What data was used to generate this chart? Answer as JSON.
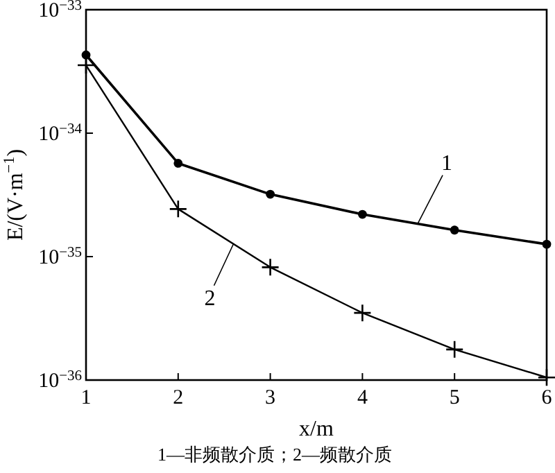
{
  "chart_data": {
    "type": "line",
    "xlabel": "x/m",
    "ylabel": "E/(V·m$^{−1}$)",
    "log": "y",
    "x": [
      1,
      2,
      3,
      4,
      5,
      6
    ],
    "xlim": [
      1,
      6
    ],
    "xticks": [
      1,
      2,
      3,
      4,
      5,
      6
    ],
    "ylim": [
      1e-36,
      1e-33
    ],
    "yticks": [
      {
        "value": 1e-36,
        "label": "10$^{−36}$"
      },
      {
        "value": 1e-35,
        "label": "10$^{−35}$"
      },
      {
        "value": 1e-34,
        "label": "10$^{−34}$"
      },
      {
        "value": 1e-33,
        "label": "10$^{−33}$"
      }
    ],
    "grid": false,
    "line_style": "solid",
    "series": [
      {
        "name": "1",
        "color": "#000000",
        "marker": "circle",
        "values": [
          4.3e-34,
          5.7e-35,
          3.2e-35,
          2.2e-35,
          1.64e-35,
          1.26e-35
        ]
      },
      {
        "name": "2",
        "color": "#000000",
        "marker": "cross",
        "values": [
          3.55e-34,
          2.43e-35,
          8.2e-36,
          3.5e-36,
          1.77e-36,
          1.05e-36
        ]
      }
    ],
    "annotations": [
      "1—非频散介质；2—频散介质"
    ]
  }
}
